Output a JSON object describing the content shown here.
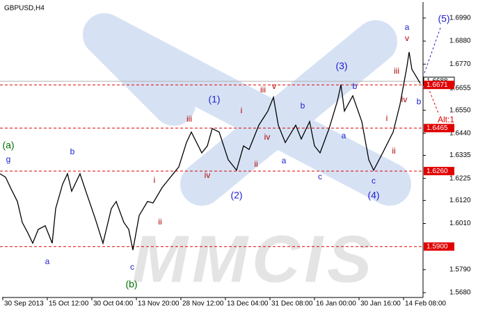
{
  "chart_data": {
    "type": "line",
    "title": "GBPUSD,H4",
    "watermark": "MMCIS",
    "color": "#000000",
    "x": [
      0,
      2,
      3.75,
      6.25,
      8,
      10,
      11.75,
      13.75,
      16.25,
      18.75,
      20,
      22.5,
      24.25,
      25.75,
      28.75,
      31.25,
      34.25,
      37,
      40,
      41.75,
      44.5,
      46.25,
      47.75,
      50,
      53,
      55,
      58.25,
      61.25,
      64.25,
      67,
      68.75,
      72.5,
      74.5,
      76.25,
      78.75,
      82,
      85,
      87.5,
      89.5,
      93,
      96.25,
      98.25,
      100,
      102.5,
      106.25,
      108.25,
      111.25,
      113,
      115,
      118.25,
      121.25,
      122.5,
      123.75,
      126.75,
      130,
      132.5,
      134.25,
      137.5,
      141.25,
      143.75,
      146.25,
      147,
      148,
      149.5,
      151
    ],
    "values": [
      1.6247,
      1.6231,
      1.6181,
      1.6115,
      1.6015,
      1.5965,
      1.5916,
      1.5982,
      1.5999,
      1.5916,
      1.6081,
      1.6198,
      1.6247,
      1.6164,
      1.6247,
      1.6148,
      1.6032,
      1.5916,
      1.6081,
      1.6115,
      1.6015,
      1.5982,
      1.5883,
      1.6048,
      1.6115,
      1.6108,
      1.6181,
      1.6231,
      1.628,
      1.6396,
      1.6446,
      1.6347,
      1.638,
      1.6463,
      1.6446,
      1.6314,
      1.6264,
      1.638,
      1.6363,
      1.6479,
      1.6546,
      1.6612,
      1.6479,
      1.6396,
      1.6479,
      1.6413,
      1.6496,
      1.638,
      1.6347,
      1.6463,
      1.6595,
      1.6672,
      1.6546,
      1.6619,
      1.6496,
      1.6314,
      1.6264,
      1.6347,
      1.6446,
      1.6579,
      1.6761,
      1.6828,
      1.6745,
      1.6712,
      1.6678
    ],
    "xlim": [
      0,
      152
    ],
    "xticks": [
      {
        "value": 1,
        "label": "30 Sep 2013"
      },
      {
        "value": 17,
        "label": "15 Oct 12:00"
      },
      {
        "value": 33,
        "label": "30 Oct 04:00"
      },
      {
        "value": 49,
        "label": "13 Nov 20:00"
      },
      {
        "value": 65,
        "label": "28 Nov 12:00"
      },
      {
        "value": 81,
        "label": "13 Dec 04:00"
      },
      {
        "value": 97,
        "label": "31 Dec 08:00"
      },
      {
        "value": 113,
        "label": "16 Jan 00:00"
      },
      {
        "value": 129,
        "label": "30 Jan 16:00"
      },
      {
        "value": 145,
        "label": "14 Feb 08:00"
      }
    ],
    "ylim": [
      1.5657,
      1.7066
    ],
    "yticks": [
      {
        "value": 1.699,
        "label": "1.6990"
      },
      {
        "value": 1.688,
        "label": "1.6880"
      },
      {
        "value": 1.677,
        "label": "1.6770"
      },
      1.6655,
      {
        "value": 1.655,
        "label": "1.6550"
      },
      {
        "value": 1.644,
        "label": "1.6440"
      },
      1.6335,
      1.6225,
      {
        "value": 1.612,
        "label": "1.6120"
      },
      {
        "value": 1.601,
        "label": "1.6010"
      },
      {
        "value": 1.579,
        "label": "1.5790"
      },
      {
        "value": 1.568,
        "label": "1.5680"
      }
    ],
    "current_price": 1.6688,
    "level_color": "#e00000",
    "levels": [
      1.6671,
      1.6465,
      {
        "value": 1.626,
        "label": "1.6260"
      },
      {
        "value": 1.59,
        "label": "1.5900"
      }
    ],
    "annotations": [
      {
        "text": "(a)",
        "color": "#007000"
      },
      {
        "text": "g",
        "color": "#2020d0"
      },
      {
        "text": "b",
        "color": "#2020d0"
      },
      {
        "text": "a",
        "color": "#2020d0"
      },
      {
        "text": "c",
        "color": "#2020d0"
      },
      {
        "text": "(b)",
        "color": "#007000"
      },
      {
        "text": "i",
        "color": "#b00000"
      },
      {
        "text": "ii",
        "color": "#b00000"
      },
      {
        "text": "iii",
        "color": "#b00000"
      },
      {
        "text": "iv",
        "color": "#b00000"
      },
      {
        "text": "(1)",
        "color": "#2020d0"
      },
      {
        "text": "(2)",
        "color": "#2020d0"
      },
      {
        "text": "i",
        "color": "#b00000"
      },
      {
        "text": "iii",
        "color": "#b00000"
      },
      {
        "text": "v",
        "color": "#b00000"
      },
      {
        "text": "iv",
        "color": "#b00000"
      },
      {
        "text": "ii",
        "color": "#b00000"
      },
      {
        "text": "a",
        "color": "#2020d0"
      },
      {
        "text": "b",
        "color": "#2020d0"
      },
      {
        "text": "c",
        "color": "#2020d0"
      },
      {
        "text": "(3)",
        "color": "#2020d0"
      },
      {
        "text": "b",
        "color": "#2020d0"
      },
      {
        "text": "a",
        "color": "#2020d0"
      },
      {
        "text": "c",
        "color": "#2020d0"
      },
      {
        "text": "(4)",
        "color": "#2020d0"
      },
      {
        "text": "i",
        "color": "#b00000"
      },
      {
        "text": "ii",
        "color": "#b00000"
      },
      {
        "text": "iii",
        "color": "#b00000"
      },
      {
        "text": "iv",
        "color": "#b00000"
      },
      {
        "text": "a",
        "color": "#2020d0"
      },
      {
        "text": "v",
        "color": "#b00000"
      },
      {
        "text": "b",
        "color": "#2020d0"
      },
      {
        "text": "(5)",
        "color": "#2020d0"
      },
      {
        "text": "Alt:1",
        "color": "#e00000"
      }
    ]
  }
}
